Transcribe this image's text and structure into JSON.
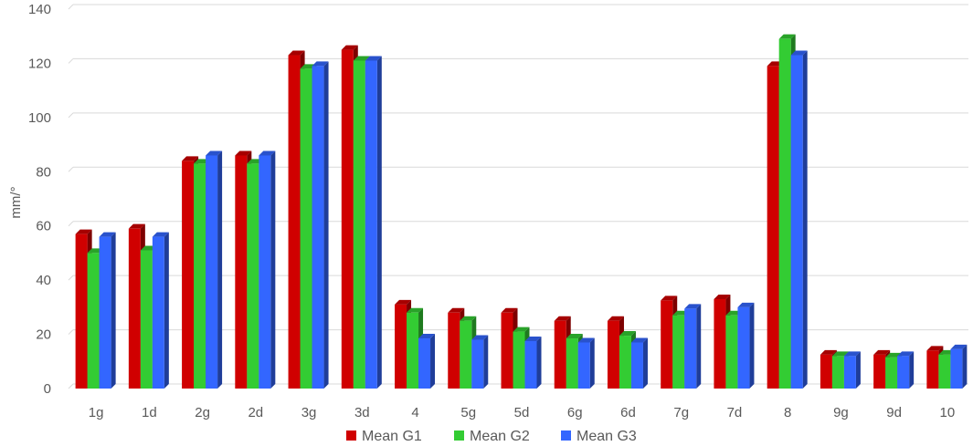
{
  "chart_data": {
    "type": "bar",
    "title": "",
    "xlabel": "",
    "ylabel": "mm/°",
    "ylim": [
      0,
      140
    ],
    "yticks": [
      0,
      20,
      40,
      60,
      80,
      100,
      120,
      140
    ],
    "grid": true,
    "legend_position": "bottom",
    "categories": [
      "1g",
      "1d",
      "2g",
      "2d",
      "3g",
      "3d",
      "4",
      "5g",
      "5d",
      "6g",
      "6d",
      "7g",
      "7d",
      "8",
      "9g",
      "9d",
      "10"
    ],
    "series": [
      {
        "name": "Mean G1",
        "color": "#d00000",
        "values": [
          57,
          59,
          84,
          86,
          123,
          125,
          31,
          28,
          28,
          25,
          25,
          32.5,
          33,
          119,
          12.5,
          12.5,
          14
        ]
      },
      {
        "name": "Mean G2",
        "color": "#33cc33",
        "values": [
          50,
          51,
          83,
          83,
          118,
          121,
          28,
          25,
          21,
          18.5,
          19.5,
          27,
          27,
          129,
          12,
          11.5,
          12.5
        ]
      },
      {
        "name": "Mean G3",
        "color": "#3366ff",
        "values": [
          56,
          56,
          86,
          86,
          119,
          121,
          18.5,
          18,
          17.5,
          17,
          17,
          29.5,
          30,
          123,
          12,
          12,
          14.5
        ]
      }
    ]
  }
}
